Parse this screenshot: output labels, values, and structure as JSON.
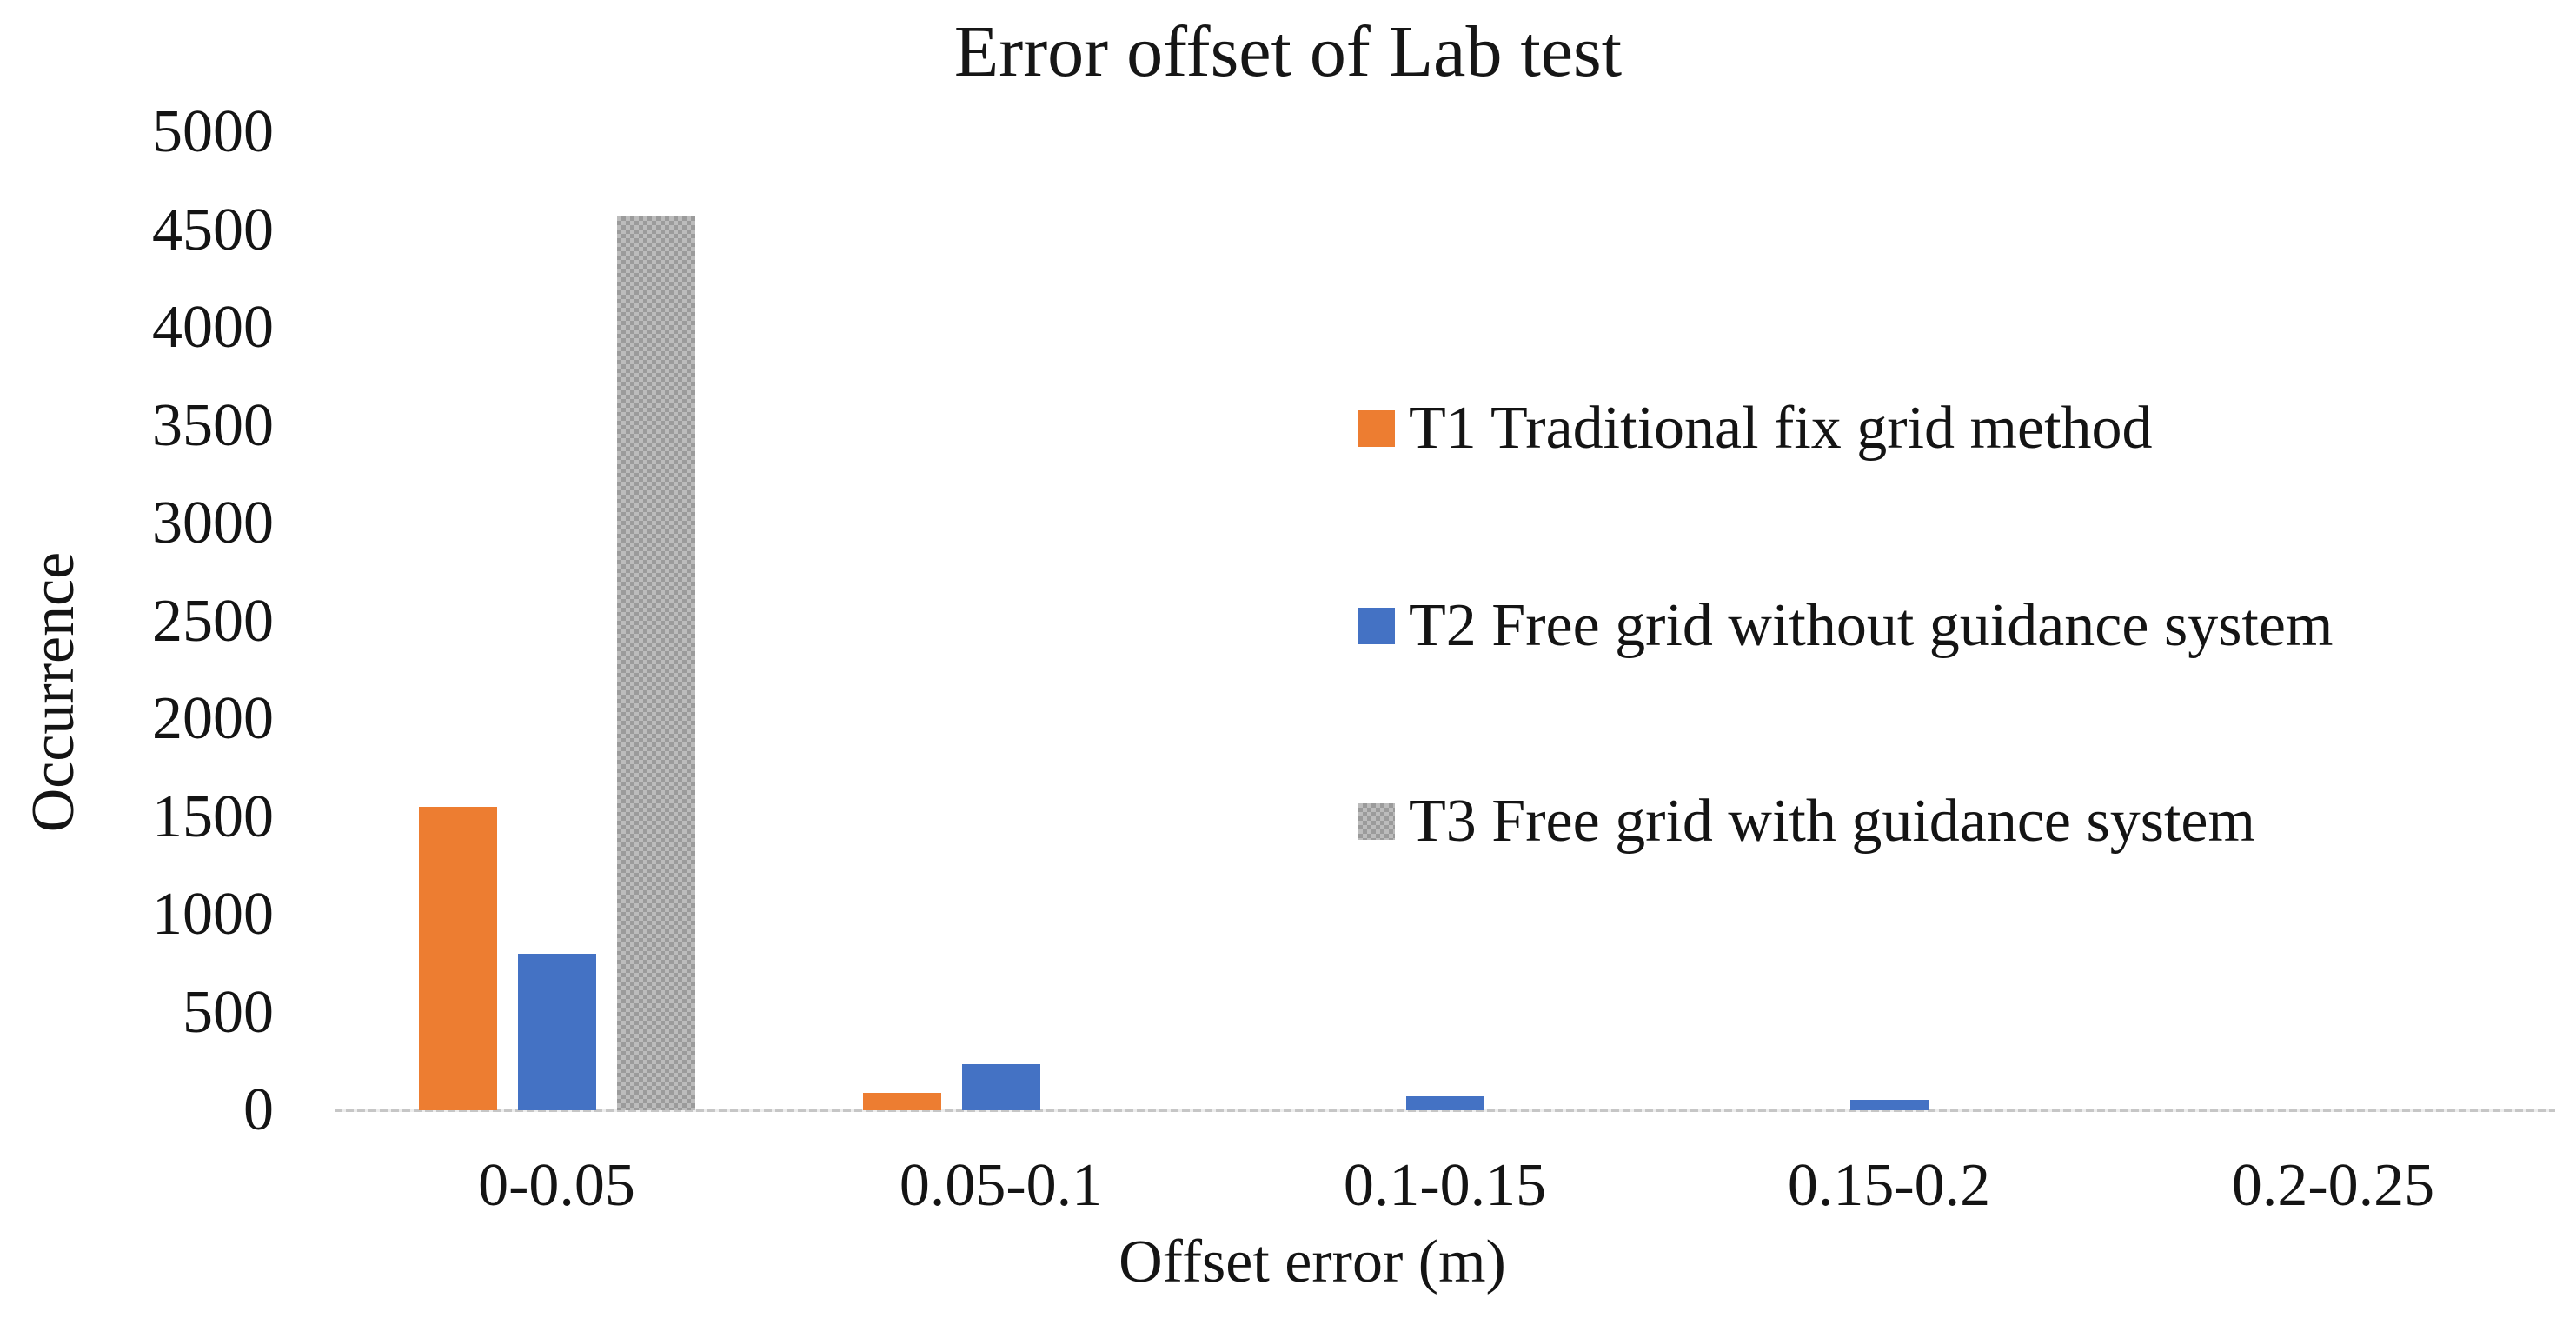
{
  "chart_data": {
    "type": "bar",
    "title": "Error offset of Lab test",
    "xlabel": "Offset error (m)",
    "ylabel": "Occurrence",
    "categories": [
      "0-0.05",
      "0.05-0.1",
      "0.1-0.15",
      "0.15-0.2",
      "0.2-0.25"
    ],
    "series": [
      {
        "name": "T1 Traditional fix grid method",
        "color": "#ED7D31",
        "fill": "solid",
        "values": [
          1550,
          90,
          0,
          0,
          0
        ]
      },
      {
        "name": "T2 Free grid without guidance system",
        "color": "#4472C4",
        "fill": "solid",
        "values": [
          800,
          235,
          70,
          55,
          0
        ]
      },
      {
        "name": "T3 Free grid with guidance system",
        "color": "#ACACAC",
        "fill": "dotted-pattern",
        "values": [
          4570,
          0,
          0,
          0,
          0
        ]
      }
    ],
    "ylim": [
      0,
      5000
    ],
    "ytick_step": 500,
    "yticks": [
      0,
      500,
      1000,
      1500,
      2000,
      2500,
      3000,
      3500,
      4000,
      4500,
      5000
    ],
    "grid": false,
    "legend_position": "right-middle",
    "axis_line_color": "#C6C6C6",
    "text_color": "#141414",
    "background": "#FFFFFF"
  }
}
